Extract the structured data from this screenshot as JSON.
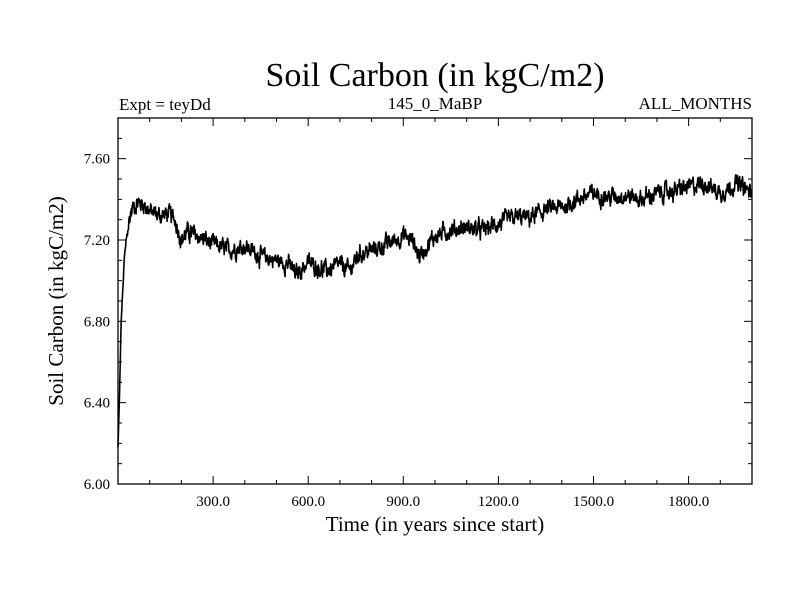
{
  "chart_data": {
    "type": "line",
    "title": "Soil Carbon (in kgC/m2)",
    "subtitle_left": "Expt = teyDd",
    "subtitle_center": "145_0_MaBP",
    "subtitle_right": "ALL_MONTHS",
    "xlabel": "Time (in years since start)",
    "ylabel": "Soil Carbon (in kgC/m2)",
    "xlim": [
      0,
      2000
    ],
    "ylim": [
      6.0,
      7.8
    ],
    "x_ticks": [
      300,
      600,
      900,
      1200,
      1500,
      1800
    ],
    "x_tick_labels": [
      "300.0",
      "600.0",
      "900.0",
      "1200.0",
      "1500.0",
      "1800.0"
    ],
    "y_ticks": [
      6.0,
      6.4,
      6.8,
      7.2,
      7.6
    ],
    "y_tick_labels": [
      "6.00",
      "6.40",
      "6.80",
      "7.20",
      "7.60"
    ],
    "series": [
      {
        "name": "Soil Carbon",
        "color": "#000000",
        "noise": 0.03,
        "x": [
          0,
          5,
          10,
          20,
          30,
          40,
          50,
          60,
          80,
          100,
          130,
          160,
          180,
          200,
          220,
          250,
          300,
          350,
          400,
          450,
          500,
          540,
          560,
          600,
          640,
          660,
          700,
          730,
          760,
          800,
          850,
          900,
          930,
          950,
          1000,
          1050,
          1100,
          1150,
          1200,
          1250,
          1300,
          1350,
          1400,
          1450,
          1500,
          1550,
          1600,
          1650,
          1700,
          1750,
          1800,
          1850,
          1900,
          1950,
          2000
        ],
        "y": [
          6.18,
          6.45,
          6.8,
          7.1,
          7.25,
          7.33,
          7.37,
          7.38,
          7.38,
          7.34,
          7.32,
          7.33,
          7.3,
          7.2,
          7.24,
          7.22,
          7.18,
          7.15,
          7.17,
          7.12,
          7.1,
          7.08,
          7.03,
          7.09,
          7.06,
          7.05,
          7.08,
          7.05,
          7.13,
          7.15,
          7.18,
          7.22,
          7.2,
          7.12,
          7.22,
          7.25,
          7.26,
          7.25,
          7.28,
          7.31,
          7.31,
          7.35,
          7.36,
          7.4,
          7.43,
          7.41,
          7.42,
          7.4,
          7.43,
          7.44,
          7.46,
          7.48,
          7.43,
          7.48,
          7.43
        ]
      }
    ]
  }
}
